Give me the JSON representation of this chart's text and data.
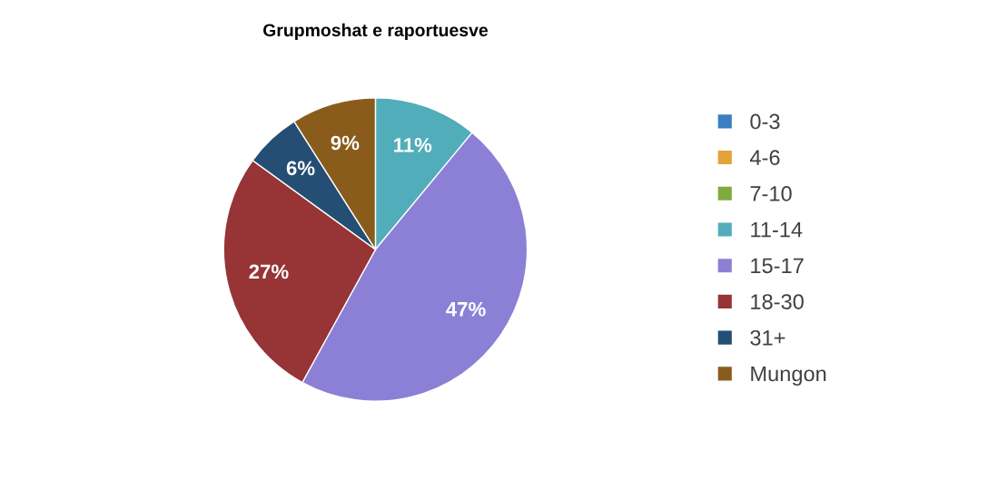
{
  "chart_data": {
    "type": "pie",
    "title": "Grupmoshat e raportuesve",
    "categories": [
      "0-3",
      "4-6",
      "7-10",
      "11-14",
      "15-17",
      "18-30",
      "31+",
      "Mungon"
    ],
    "values": [
      0,
      0,
      0,
      11,
      47,
      27,
      6,
      9
    ],
    "colors": [
      "#3a7fc1",
      "#e4a23a",
      "#7fab3e",
      "#52adbb",
      "#8b80d6",
      "#963436",
      "#244e74",
      "#8a5c1c"
    ],
    "value_labels": [
      null,
      null,
      null,
      "11%",
      "47%",
      "27%",
      "6%",
      "9%"
    ],
    "legend": "right"
  }
}
